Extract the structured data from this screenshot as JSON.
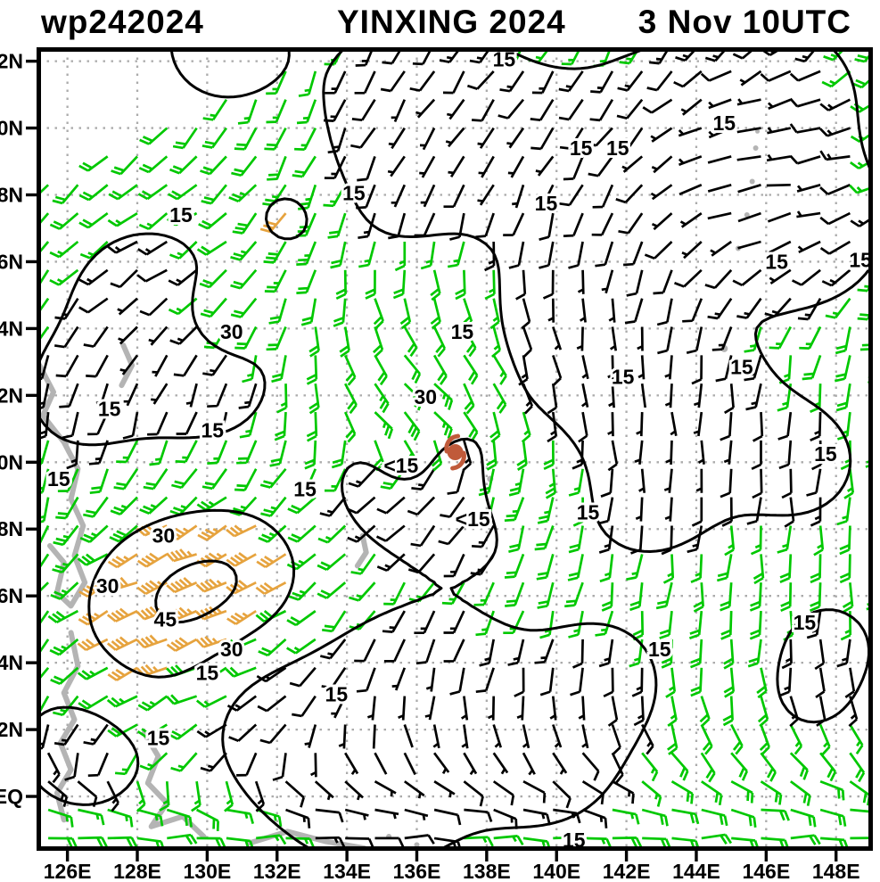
{
  "header": {
    "storm_id": "wp242024",
    "storm_name": "YINXING 2024",
    "valid_time": "3 Nov 10UTC"
  },
  "colors": {
    "background": "#ffffff",
    "title_text": "#000000",
    "frame": "#000000",
    "grid": "#ababab",
    "coast": "#b4b4b4",
    "contour": "#000000",
    "barb_weak": "#000000",
    "barb_moderate": "#00c800",
    "barb_strong": "#e6a33e",
    "storm_symbol": "#c05a3a",
    "label_halo": "#ffffff"
  },
  "axes": {
    "bounds": {
      "lon_min": 125.18,
      "lon_max": 148.99,
      "lat_min": -1.56,
      "lat_max": 22.35
    },
    "x_ticks": [
      {
        "label": "126E",
        "lon": 126
      },
      {
        "label": "128E",
        "lon": 128
      },
      {
        "label": "130E",
        "lon": 130
      },
      {
        "label": "132E",
        "lon": 132
      },
      {
        "label": "134E",
        "lon": 134
      },
      {
        "label": "136E",
        "lon": 136
      },
      {
        "label": "138E",
        "lon": 138
      },
      {
        "label": "140E",
        "lon": 140
      },
      {
        "label": "142E",
        "lon": 142
      },
      {
        "label": "144E",
        "lon": 144
      },
      {
        "label": "146E",
        "lon": 146
      },
      {
        "label": "148E",
        "lon": 148
      }
    ],
    "y_ticks": [
      {
        "label": "EQ",
        "lat": 0
      },
      {
        "label": "2N",
        "lat": 2
      },
      {
        "label": "4N",
        "lat": 4
      },
      {
        "label": "6N",
        "lat": 6
      },
      {
        "label": "8N",
        "lat": 8
      },
      {
        "label": "10N",
        "lat": 10
      },
      {
        "label": "12N",
        "lat": 12
      },
      {
        "label": "14N",
        "lat": 14
      },
      {
        "label": "16N",
        "lat": 16
      },
      {
        "label": "18N",
        "lat": 18
      },
      {
        "label": "20N",
        "lat": 20
      },
      {
        "label": "22N",
        "lat": 22
      }
    ]
  },
  "chart_data": {
    "type": "wind-barb-map",
    "title": "wp242024  YINXING 2024  3 Nov 10UTC",
    "isotach_levels_kt": [
      15,
      30,
      45
    ],
    "barb_color_rule": {
      "lt_15kt": "black",
      "15_to_30kt": "green",
      "ge_30kt": "orange"
    },
    "storm_center": {
      "lon": 137.1,
      "lat": 10.3,
      "symbol": "tropical-cyclone"
    },
    "contour_labels": [
      {
        "text": "15",
        "lon": 138.5,
        "lat": 22.05
      },
      {
        "text": "15",
        "lon": 144.8,
        "lat": 20.15
      },
      {
        "text": "15",
        "lon": 140.7,
        "lat": 19.4
      },
      {
        "text": "15",
        "lon": 141.75,
        "lat": 19.4
      },
      {
        "text": "15",
        "lon": 134.2,
        "lat": 18.05
      },
      {
        "text": "15",
        "lon": 129.25,
        "lat": 17.4
      },
      {
        "text": "15",
        "lon": 139.7,
        "lat": 17.75
      },
      {
        "text": "15",
        "lon": 146.3,
        "lat": 16.0
      },
      {
        "text": "15",
        "lon": 148.7,
        "lat": 16.05
      },
      {
        "text": "30",
        "lon": 130.7,
        "lat": 13.9
      },
      {
        "text": "15",
        "lon": 137.3,
        "lat": 13.9
      },
      {
        "text": "30",
        "lon": 136.25,
        "lat": 11.95
      },
      {
        "text": "15",
        "lon": 127.2,
        "lat": 11.6
      },
      {
        "text": "15",
        "lon": 130.15,
        "lat": 10.95
      },
      {
        "text": "15",
        "lon": 125.75,
        "lat": 9.5
      },
      {
        "text": "<15",
        "lon": 135.55,
        "lat": 9.9
      },
      {
        "text": "15",
        "lon": 132.8,
        "lat": 9.2
      },
      {
        "text": "<15",
        "lon": 137.6,
        "lat": 8.3
      },
      {
        "text": "15",
        "lon": 140.9,
        "lat": 8.5
      },
      {
        "text": "15",
        "lon": 141.9,
        "lat": 12.55
      },
      {
        "text": "15",
        "lon": 145.3,
        "lat": 12.85
      },
      {
        "text": "15",
        "lon": 147.7,
        "lat": 10.25
      },
      {
        "text": "30",
        "lon": 128.75,
        "lat": 7.8
      },
      {
        "text": "30",
        "lon": 127.15,
        "lat": 6.3
      },
      {
        "text": "45",
        "lon": 128.8,
        "lat": 5.3
      },
      {
        "text": "30",
        "lon": 130.7,
        "lat": 4.4
      },
      {
        "text": "15",
        "lon": 130.0,
        "lat": 3.7
      },
      {
        "text": "15",
        "lon": 133.7,
        "lat": 3.05
      },
      {
        "text": "15",
        "lon": 128.6,
        "lat": 1.75
      },
      {
        "text": "15",
        "lon": 142.95,
        "lat": 4.4
      },
      {
        "text": "15",
        "lon": 147.1,
        "lat": 5.2
      },
      {
        "text": "15",
        "lon": 140.5,
        "lat": -1.3
      }
    ],
    "speed_field": {
      "base_kt": 20,
      "gaussian_components": [
        [
          129.3,
          5.5,
          28,
          1.9
        ],
        [
          131.1,
          6.9,
          10,
          1.3
        ],
        [
          130.4,
          14.3,
          12,
          0.9
        ],
        [
          132.3,
          17.3,
          13,
          0.95
        ],
        [
          136.1,
          11.3,
          13,
          1.0
        ],
        [
          135.8,
          9.8,
          8,
          0.7
        ],
        [
          139.1,
          9.4,
          12,
          1.0
        ],
        [
          136.0,
          20.8,
          -12,
          1.9
        ],
        [
          139.0,
          19.0,
          -11,
          1.6
        ],
        [
          135.5,
          18.3,
          -9,
          1.1
        ],
        [
          130.5,
          22.5,
          -10,
          1.3
        ],
        [
          143.5,
          19.5,
          -12,
          2.2
        ],
        [
          146.5,
          21.0,
          -10,
          1.5
        ],
        [
          147.3,
          17.0,
          -11,
          1.5
        ],
        [
          145.5,
          17.5,
          -10,
          1.6
        ],
        [
          128.3,
          14.8,
          -11,
          1.6
        ],
        [
          129.8,
          12.6,
          -11,
          1.5
        ],
        [
          126.5,
          12.0,
          -9,
          1.3
        ],
        [
          137.3,
          8.6,
          -11,
          1.3
        ],
        [
          135.2,
          9.3,
          -10,
          1.2
        ],
        [
          137.0,
          10.4,
          -8,
          0.85
        ],
        [
          140.5,
          15.0,
          -10,
          1.4
        ],
        [
          141.8,
          12.8,
          -12,
          1.9
        ],
        [
          144.0,
          11.0,
          -11,
          1.8
        ],
        [
          147.0,
          10.0,
          -9,
          1.2
        ],
        [
          142.5,
          8.8,
          -8,
          1.2
        ],
        [
          133.0,
          2.0,
          -11,
          2.0
        ],
        [
          136.5,
          3.2,
          -11,
          1.8
        ],
        [
          139.5,
          1.5,
          -11,
          1.8
        ],
        [
          141.3,
          3.6,
          -9,
          1.2
        ],
        [
          130.5,
          3.8,
          -9,
          1.4
        ],
        [
          135.0,
          0.0,
          -10,
          1.6
        ],
        [
          126.5,
          1.5,
          -10,
          1.5
        ],
        [
          147.8,
          4.5,
          -8,
          1.1
        ],
        [
          147.3,
          3.0,
          -6,
          0.9
        ]
      ]
    },
    "flow_model": {
      "background_southerly_kt": 8,
      "background_easterly_kt": 4.5,
      "vortex_peak_kt": 6,
      "vortex_radius_deg": 2.0,
      "direction_jets": [
        [
          129.3,
          5.4,
          26,
          2.4,
          1.0,
          0.12
        ],
        [
          128.5,
          17.0,
          13,
          2.8,
          1.0,
          0.05
        ],
        [
          137.5,
          20.8,
          12,
          2.8,
          0.86,
          0.5
        ],
        [
          146.5,
          19.0,
          14,
          3.0,
          0.9,
          -0.44
        ]
      ]
    },
    "barb_grid": {
      "lon_start": 125.45,
      "lat_start": -1.25,
      "step_deg": 0.85
    },
    "data_void_corner": {
      "lat_intercept": 18.4,
      "slope_per_lon": 0.52,
      "lon_ref": 125.2
    },
    "coastlines": [
      [
        [
          125.2,
          12.9
        ],
        [
          125.6,
          12.1
        ],
        [
          125.3,
          11.4
        ],
        [
          125.9,
          10.6
        ],
        [
          126.3,
          9.8
        ],
        [
          126.1,
          8.9
        ],
        [
          126.45,
          8.1
        ],
        [
          126.2,
          7.2
        ],
        [
          126.5,
          6.4
        ],
        [
          126.1,
          5.7
        ],
        [
          125.7,
          6.1
        ],
        [
          125.9,
          7.0
        ],
        [
          125.5,
          7.5
        ]
      ],
      [
        [
          126.1,
          4.9
        ],
        [
          126.3,
          3.9
        ],
        [
          125.9,
          3.1
        ],
        [
          126.2,
          2.3
        ],
        [
          125.8,
          1.6
        ],
        [
          126.1,
          0.8
        ],
        [
          125.7,
          0.1
        ],
        [
          125.9,
          -0.7
        ]
      ],
      [
        [
          127.6,
          13.5
        ],
        [
          127.85,
          12.9
        ],
        [
          127.55,
          12.3
        ]
      ],
      [
        [
          128.2,
          1.9
        ],
        [
          128.6,
          1.2
        ],
        [
          128.3,
          0.4
        ],
        [
          128.85,
          -0.2
        ],
        [
          128.4,
          -0.9
        ],
        [
          129.3,
          -0.6
        ],
        [
          129.9,
          -1.2
        ]
      ],
      [
        [
          131.2,
          -1.4
        ],
        [
          132.3,
          -1.05
        ],
        [
          133.4,
          -1.35
        ],
        [
          134.5,
          -1.55
        ]
      ],
      [
        [
          134.45,
          7.8
        ],
        [
          134.55,
          7.3
        ],
        [
          134.3,
          6.9
        ]
      ]
    ],
    "islands": [
      [
        138.1,
        9.5,
        3.5
      ],
      [
        144.8,
        13.4,
        4
      ],
      [
        145.2,
        16.4,
        3
      ],
      [
        145.45,
        17.4,
        3
      ],
      [
        145.6,
        18.4,
        3
      ],
      [
        145.7,
        19.4,
        3
      ],
      [
        145.75,
        19.9,
        2.5
      ],
      [
        135.2,
        -1.2,
        3
      ],
      [
        136.0,
        -1.45,
        3
      ]
    ]
  }
}
